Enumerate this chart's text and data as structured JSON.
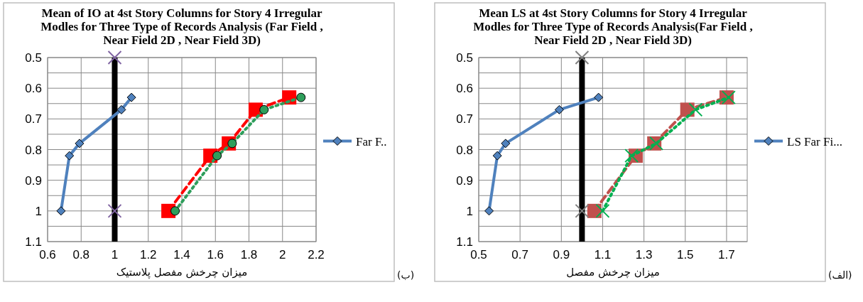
{
  "chart_data": [
    {
      "type": "line",
      "title": "Mean of  IO at 4st Story Columns for Story 4 Irregular  Modles for Three Type of Records Analysis (Far Field , Near Field 2D , Near Field 3D)",
      "xlabel": "میزان چرخش مفصل پلاستیک",
      "xlim": [
        0.6,
        2.2
      ],
      "xticks": [
        0.6,
        0.8,
        1,
        1.2,
        1.4,
        1.6,
        1.8,
        2,
        2.2
      ],
      "ylim": [
        1.1,
        0.5
      ],
      "yticks": [
        0.5,
        {
          "value": 0.55,
          "label": null
        },
        0.6,
        {
          "value": 0.65,
          "label": null
        },
        0.7,
        {
          "value": 0.75,
          "label": null
        },
        0.8,
        {
          "value": 0.85,
          "label": null
        },
        0.9,
        {
          "value": 0.95,
          "label": null
        },
        1,
        {
          "value": 1.05,
          "label": null
        },
        1.1
      ],
      "grid": true,
      "legend": "right",
      "series": [
        {
          "name": "Far F..",
          "color": "#4f81bd",
          "marker": "diamond",
          "line_style": "solid",
          "x": [
            0.68,
            0.73,
            0.79,
            1.04,
            1.1
          ],
          "values": [
            1.0,
            0.82,
            0.78,
            0.67,
            0.63
          ]
        },
        {
          "color": "#ff0000",
          "marker": "square",
          "line_style": "dashed",
          "x": [
            1.32,
            1.57,
            1.68,
            1.84,
            2.04
          ],
          "values": [
            1.0,
            0.82,
            0.78,
            0.67,
            0.63
          ]
        },
        {
          "color": "#2e9e5b",
          "marker": "circle",
          "line_style": "dotted",
          "x": [
            1.36,
            1.61,
            1.7,
            1.89,
            2.11
          ],
          "values": [
            1.0,
            0.82,
            0.78,
            0.67,
            0.63
          ]
        },
        {
          "type": "scatter",
          "color": "#8064a2",
          "marker": "cross",
          "x": [
            1,
            1
          ],
          "values": [
            0.5,
            1.0
          ]
        }
      ],
      "ref_lines": [
        {
          "axis": "x",
          "value": 1,
          "color": "#000000"
        }
      ],
      "annotations": [
        "(ب)"
      ]
    },
    {
      "type": "line",
      "title": "Mean LS at 4st Story Columns for Story 4  Irregular  Modles  for Three Type of Records Analysis(Far Field , Near Field 2D , Near Field 3D)",
      "xlabel": "میزان چرخش مفصل",
      "xlim": [
        0.5,
        1.8
      ],
      "xticks": [
        0.5,
        0.7,
        0.9,
        1.1,
        1.3,
        1.5,
        1.7
      ],
      "ylim": [
        1.1,
        0.5
      ],
      "yticks": [
        0.5,
        {
          "value": 0.55,
          "label": null
        },
        0.6,
        {
          "value": 0.65,
          "label": null
        },
        0.7,
        {
          "value": 0.75,
          "label": null
        },
        0.8,
        {
          "value": 0.85,
          "label": null
        },
        0.9,
        {
          "value": 0.95,
          "label": null
        },
        1,
        {
          "value": 1.05,
          "label": null
        },
        1.1
      ],
      "grid": true,
      "legend": "right",
      "series": [
        {
          "name": "LS Far Fi...",
          "color": "#4f81bd",
          "marker": "diamond",
          "line_style": "solid",
          "x": [
            0.55,
            0.59,
            0.63,
            0.89,
            1.08
          ],
          "values": [
            1.0,
            0.82,
            0.78,
            0.67,
            0.63
          ]
        },
        {
          "color": "#c0504d",
          "marker": "square",
          "line_style": "dashed",
          "x": [
            1.06,
            1.26,
            1.35,
            1.51,
            1.7
          ],
          "values": [
            1.0,
            0.82,
            0.78,
            0.67,
            0.63
          ]
        },
        {
          "color": "#00b050",
          "marker": "cross",
          "line_style": "dotted",
          "x": [
            1.1,
            1.24,
            1.36,
            1.55,
            1.71
          ],
          "values": [
            1.0,
            0.82,
            0.78,
            0.67,
            0.63
          ]
        },
        {
          "type": "scatter",
          "color": "#7f7f7f",
          "marker": "cross",
          "x": [
            1,
            1
          ],
          "values": [
            0.5,
            1.0
          ]
        }
      ],
      "ref_lines": [
        {
          "axis": "x",
          "value": 1,
          "color": "#000000"
        }
      ],
      "annotations": [
        "(الف)"
      ]
    }
  ]
}
